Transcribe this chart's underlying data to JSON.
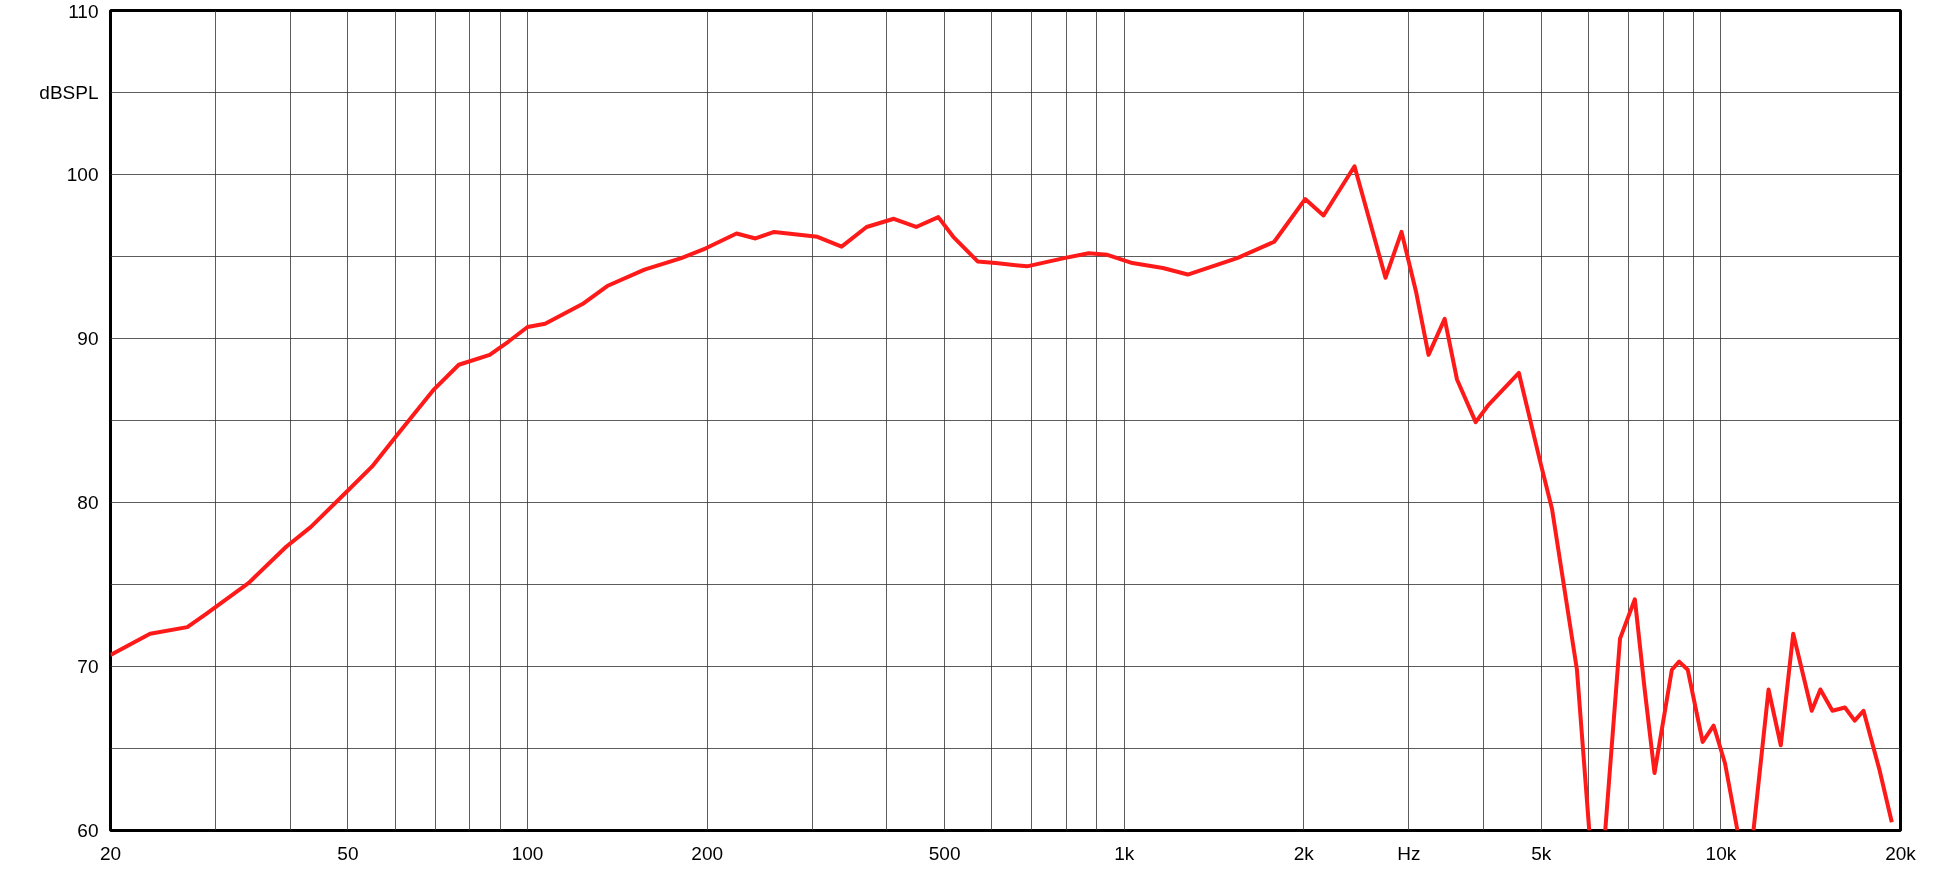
{
  "chart_data": {
    "type": "line",
    "x": [
      20,
      23.3,
      26.9,
      28.9,
      34.1,
      39.4,
      43.3,
      49.9,
      54.9,
      60.4,
      69.7,
      76.7,
      86.4,
      92.8,
      100,
      107,
      123.6,
      136,
      157,
      181,
      199,
      224,
      241,
      259,
      306,
      336,
      370,
      411,
      448,
      488,
      517,
      568,
      609,
      687,
      793,
      872,
      937,
      1032,
      1161,
      1278,
      1546,
      1784,
      2010,
      2158,
      2432,
      2741,
      2916,
      3086,
      3236,
      3444,
      3612,
      3882,
      4068,
      4586,
      4971,
      5212,
      5738,
      6017,
      6200,
      6400,
      6776,
      7175,
      7452,
      7740,
      8276,
      8512,
      8800,
      9320,
      9723,
      10160,
      10660,
      11000,
      11340,
      12020,
      12600,
      13220,
      14200,
      14680,
      15380,
      16140,
      16760,
      17340,
      18440,
      19340
    ],
    "series": [
      {
        "color": "#ff1a1a",
        "values": [
          70.7,
          72.0,
          72.4,
          73.2,
          75.1,
          77.3,
          78.5,
          80.7,
          82.2,
          84.1,
          86.9,
          88.4,
          89.0,
          89.8,
          90.7,
          90.9,
          92.1,
          93.2,
          94.2,
          94.9,
          95.5,
          96.4,
          96.1,
          96.5,
          96.2,
          95.6,
          96.8,
          97.3,
          96.8,
          97.4,
          96.2,
          94.7,
          94.6,
          94.4,
          94.9,
          95.2,
          95.1,
          94.6,
          94.3,
          93.9,
          94.9,
          95.9,
          98.5,
          97.5,
          100.5,
          93.7,
          96.5,
          92.8,
          89.0,
          91.2,
          87.5,
          84.9,
          85.9,
          87.9,
          82.6,
          79.6,
          69.8,
          60.0,
          null,
          60.0,
          71.7,
          74.1,
          68.6,
          63.5,
          69.8,
          70.3,
          69.8,
          65.4,
          66.4,
          64.1,
          60.0,
          null,
          60.0,
          68.6,
          65.2,
          72.0,
          67.3,
          68.6,
          67.3,
          67.5,
          66.7,
          67.3,
          63.7,
          60.5
        ]
      }
    ],
    "log": "x",
    "xlim": [
      20,
      20000
    ],
    "xticks": [
      20,
      {
        "value": 30,
        "label": null
      },
      {
        "value": 40,
        "label": null
      },
      50,
      {
        "value": 60,
        "label": null
      },
      {
        "value": 70,
        "label": null
      },
      {
        "value": 80,
        "label": null
      },
      {
        "value": 90,
        "label": null
      },
      100,
      200,
      {
        "value": 300,
        "label": null
      },
      {
        "value": 400,
        "label": null
      },
      500,
      {
        "value": 600,
        "label": null
      },
      {
        "value": 700,
        "label": null
      },
      {
        "value": 800,
        "label": null
      },
      {
        "value": 900,
        "label": null
      },
      {
        "value": 1000,
        "label": "1k"
      },
      {
        "value": 2000,
        "label": "2k"
      },
      {
        "value": 3000,
        "label": "Hz"
      },
      {
        "value": 4000,
        "label": null
      },
      {
        "value": 5000,
        "label": "5k"
      },
      {
        "value": 6000,
        "label": null
      },
      {
        "value": 7000,
        "label": null
      },
      {
        "value": 8000,
        "label": null
      },
      {
        "value": 9000,
        "label": null
      },
      {
        "value": 10000,
        "label": "10k"
      },
      {
        "value": 20000,
        "label": "20k"
      }
    ],
    "ylim": [
      60,
      110
    ],
    "yticks": [
      60,
      {
        "value": 65,
        "label": null
      },
      70,
      {
        "value": 75,
        "label": null
      },
      80,
      {
        "value": 85,
        "label": null
      },
      90,
      {
        "value": 95,
        "label": null
      },
      100,
      {
        "value": 105,
        "label": "dBSPL"
      },
      110
    ],
    "grid": true,
    "line_style": "solid"
  }
}
